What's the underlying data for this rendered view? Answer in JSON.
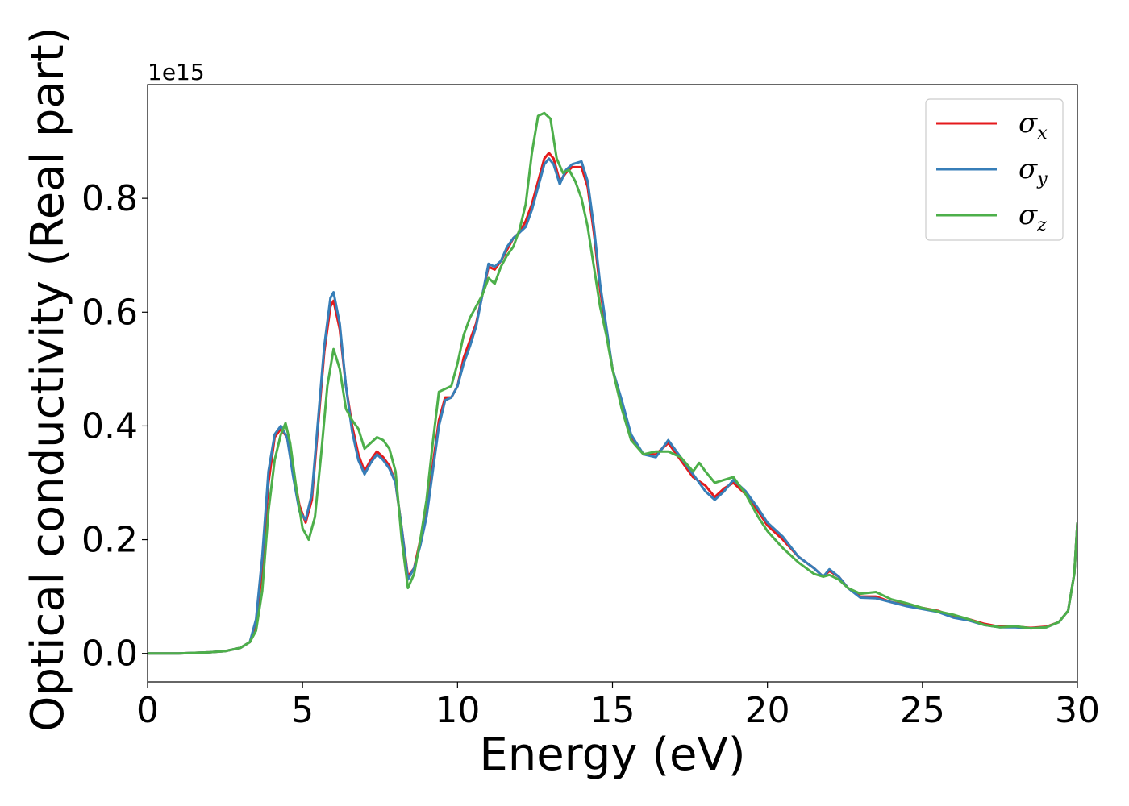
{
  "chart_data": {
    "type": "line",
    "xlabel": "Energy (eV)",
    "ylabel": "Optical conductivity (Real part)",
    "y_offset_label": "1e15",
    "xlim": [
      0,
      30
    ],
    "ylim": [
      -0.05,
      1.0
    ],
    "xticks": [
      0,
      5,
      10,
      15,
      20,
      25,
      30
    ],
    "xtick_labels": [
      "0",
      "5",
      "10",
      "15",
      "20",
      "25",
      "30"
    ],
    "yticks": [
      0.0,
      0.2,
      0.4,
      0.6,
      0.8
    ],
    "ytick_labels": [
      "0.0",
      "0.2",
      "0.4",
      "0.6",
      "0.8"
    ],
    "grid": false,
    "legend_position": "top-right",
    "series": [
      {
        "name": "σx",
        "symbol": "σ",
        "subscript": "x",
        "color": "#e41a1c",
        "points": [
          [
            0,
            0
          ],
          [
            1,
            0
          ],
          [
            2,
            0.002
          ],
          [
            2.5,
            0.004
          ],
          [
            3,
            0.01
          ],
          [
            3.3,
            0.02
          ],
          [
            3.5,
            0.05
          ],
          [
            3.7,
            0.15
          ],
          [
            3.9,
            0.3
          ],
          [
            4.1,
            0.38
          ],
          [
            4.3,
            0.395
          ],
          [
            4.5,
            0.38
          ],
          [
            4.7,
            0.32
          ],
          [
            4.9,
            0.26
          ],
          [
            5.1,
            0.23
          ],
          [
            5.3,
            0.27
          ],
          [
            5.5,
            0.4
          ],
          [
            5.7,
            0.53
          ],
          [
            5.9,
            0.61
          ],
          [
            6.0,
            0.62
          ],
          [
            6.2,
            0.57
          ],
          [
            6.4,
            0.47
          ],
          [
            6.6,
            0.4
          ],
          [
            6.8,
            0.35
          ],
          [
            7.0,
            0.32
          ],
          [
            7.2,
            0.34
          ],
          [
            7.4,
            0.355
          ],
          [
            7.6,
            0.345
          ],
          [
            7.8,
            0.33
          ],
          [
            8.0,
            0.3
          ],
          [
            8.2,
            0.22
          ],
          [
            8.4,
            0.135
          ],
          [
            8.6,
            0.15
          ],
          [
            8.8,
            0.2
          ],
          [
            9.0,
            0.25
          ],
          [
            9.2,
            0.33
          ],
          [
            9.4,
            0.41
          ],
          [
            9.6,
            0.45
          ],
          [
            9.8,
            0.45
          ],
          [
            10.0,
            0.47
          ],
          [
            10.2,
            0.52
          ],
          [
            10.4,
            0.55
          ],
          [
            10.6,
            0.58
          ],
          [
            10.8,
            0.63
          ],
          [
            11.0,
            0.68
          ],
          [
            11.2,
            0.675
          ],
          [
            11.4,
            0.69
          ],
          [
            11.6,
            0.71
          ],
          [
            11.8,
            0.73
          ],
          [
            12.0,
            0.74
          ],
          [
            12.2,
            0.76
          ],
          [
            12.4,
            0.79
          ],
          [
            12.6,
            0.83
          ],
          [
            12.8,
            0.87
          ],
          [
            12.95,
            0.88
          ],
          [
            13.1,
            0.87
          ],
          [
            13.3,
            0.83
          ],
          [
            13.5,
            0.845
          ],
          [
            13.7,
            0.855
          ],
          [
            14.0,
            0.855
          ],
          [
            14.2,
            0.82
          ],
          [
            14.4,
            0.74
          ],
          [
            14.6,
            0.64
          ],
          [
            14.8,
            0.57
          ],
          [
            15.0,
            0.5
          ],
          [
            15.3,
            0.44
          ],
          [
            15.6,
            0.38
          ],
          [
            16.0,
            0.35
          ],
          [
            16.4,
            0.35
          ],
          [
            16.8,
            0.37
          ],
          [
            17.2,
            0.34
          ],
          [
            17.6,
            0.31
          ],
          [
            18.0,
            0.295
          ],
          [
            18.3,
            0.275
          ],
          [
            18.6,
            0.29
          ],
          [
            18.9,
            0.3
          ],
          [
            19.3,
            0.28
          ],
          [
            19.7,
            0.25
          ],
          [
            20.0,
            0.225
          ],
          [
            20.5,
            0.2
          ],
          [
            21.0,
            0.17
          ],
          [
            21.5,
            0.15
          ],
          [
            21.8,
            0.135
          ],
          [
            22.0,
            0.145
          ],
          [
            22.3,
            0.135
          ],
          [
            22.6,
            0.115
          ],
          [
            23.0,
            0.1
          ],
          [
            23.5,
            0.1
          ],
          [
            24.0,
            0.09
          ],
          [
            24.5,
            0.085
          ],
          [
            25.0,
            0.08
          ],
          [
            25.5,
            0.075
          ],
          [
            26.0,
            0.065
          ],
          [
            26.5,
            0.06
          ],
          [
            27.0,
            0.052
          ],
          [
            27.5,
            0.047
          ],
          [
            28.0,
            0.047
          ],
          [
            28.5,
            0.045
          ],
          [
            29.0,
            0.047
          ],
          [
            29.4,
            0.055
          ],
          [
            29.7,
            0.075
          ],
          [
            29.9,
            0.14
          ],
          [
            30.0,
            0.23
          ]
        ]
      },
      {
        "name": "σy",
        "symbol": "σ",
        "subscript": "y",
        "color": "#377eb8",
        "points": [
          [
            0,
            0
          ],
          [
            1,
            0
          ],
          [
            2,
            0.002
          ],
          [
            2.5,
            0.004
          ],
          [
            3,
            0.01
          ],
          [
            3.3,
            0.02
          ],
          [
            3.5,
            0.06
          ],
          [
            3.7,
            0.17
          ],
          [
            3.9,
            0.32
          ],
          [
            4.1,
            0.385
          ],
          [
            4.3,
            0.4
          ],
          [
            4.5,
            0.38
          ],
          [
            4.7,
            0.31
          ],
          [
            4.9,
            0.25
          ],
          [
            5.1,
            0.235
          ],
          [
            5.3,
            0.28
          ],
          [
            5.5,
            0.41
          ],
          [
            5.7,
            0.54
          ],
          [
            5.9,
            0.625
          ],
          [
            6.0,
            0.635
          ],
          [
            6.2,
            0.58
          ],
          [
            6.4,
            0.47
          ],
          [
            6.6,
            0.39
          ],
          [
            6.8,
            0.34
          ],
          [
            7.0,
            0.315
          ],
          [
            7.2,
            0.335
          ],
          [
            7.4,
            0.35
          ],
          [
            7.6,
            0.34
          ],
          [
            7.8,
            0.325
          ],
          [
            8.0,
            0.3
          ],
          [
            8.2,
            0.22
          ],
          [
            8.4,
            0.13
          ],
          [
            8.6,
            0.15
          ],
          [
            8.8,
            0.19
          ],
          [
            9.0,
            0.24
          ],
          [
            9.2,
            0.32
          ],
          [
            9.4,
            0.4
          ],
          [
            9.6,
            0.445
          ],
          [
            9.8,
            0.45
          ],
          [
            10.0,
            0.47
          ],
          [
            10.2,
            0.51
          ],
          [
            10.4,
            0.54
          ],
          [
            10.6,
            0.575
          ],
          [
            10.8,
            0.63
          ],
          [
            11.0,
            0.685
          ],
          [
            11.2,
            0.68
          ],
          [
            11.4,
            0.69
          ],
          [
            11.6,
            0.715
          ],
          [
            11.8,
            0.73
          ],
          [
            12.0,
            0.74
          ],
          [
            12.2,
            0.75
          ],
          [
            12.4,
            0.78
          ],
          [
            12.6,
            0.82
          ],
          [
            12.8,
            0.86
          ],
          [
            12.95,
            0.87
          ],
          [
            13.1,
            0.86
          ],
          [
            13.3,
            0.825
          ],
          [
            13.5,
            0.85
          ],
          [
            13.7,
            0.86
          ],
          [
            14.0,
            0.865
          ],
          [
            14.2,
            0.83
          ],
          [
            14.4,
            0.75
          ],
          [
            14.6,
            0.65
          ],
          [
            14.8,
            0.575
          ],
          [
            15.0,
            0.5
          ],
          [
            15.3,
            0.445
          ],
          [
            15.6,
            0.385
          ],
          [
            16.0,
            0.35
          ],
          [
            16.4,
            0.345
          ],
          [
            16.8,
            0.375
          ],
          [
            17.2,
            0.345
          ],
          [
            17.6,
            0.315
          ],
          [
            18.0,
            0.285
          ],
          [
            18.3,
            0.27
          ],
          [
            18.6,
            0.285
          ],
          [
            18.9,
            0.305
          ],
          [
            19.3,
            0.285
          ],
          [
            19.7,
            0.255
          ],
          [
            20.0,
            0.23
          ],
          [
            20.5,
            0.205
          ],
          [
            21.0,
            0.17
          ],
          [
            21.5,
            0.15
          ],
          [
            21.8,
            0.135
          ],
          [
            22.0,
            0.148
          ],
          [
            22.3,
            0.135
          ],
          [
            22.6,
            0.115
          ],
          [
            23.0,
            0.098
          ],
          [
            23.5,
            0.097
          ],
          [
            24.0,
            0.09
          ],
          [
            24.5,
            0.083
          ],
          [
            25.0,
            0.078
          ],
          [
            25.5,
            0.073
          ],
          [
            26.0,
            0.063
          ],
          [
            26.5,
            0.058
          ],
          [
            27.0,
            0.05
          ],
          [
            27.5,
            0.046
          ],
          [
            28.0,
            0.046
          ],
          [
            28.5,
            0.044
          ],
          [
            29.0,
            0.046
          ],
          [
            29.4,
            0.055
          ],
          [
            29.7,
            0.075
          ],
          [
            29.9,
            0.14
          ],
          [
            30.0,
            0.23
          ]
        ]
      },
      {
        "name": "σz",
        "symbol": "σ",
        "subscript": "z",
        "color": "#4daf4a",
        "points": [
          [
            0,
            0
          ],
          [
            1,
            0
          ],
          [
            2,
            0.002
          ],
          [
            2.5,
            0.004
          ],
          [
            3,
            0.01
          ],
          [
            3.3,
            0.02
          ],
          [
            3.5,
            0.04
          ],
          [
            3.7,
            0.11
          ],
          [
            3.9,
            0.25
          ],
          [
            4.1,
            0.34
          ],
          [
            4.3,
            0.385
          ],
          [
            4.45,
            0.405
          ],
          [
            4.6,
            0.37
          ],
          [
            4.8,
            0.29
          ],
          [
            5.0,
            0.22
          ],
          [
            5.2,
            0.2
          ],
          [
            5.4,
            0.24
          ],
          [
            5.6,
            0.35
          ],
          [
            5.8,
            0.47
          ],
          [
            6.0,
            0.535
          ],
          [
            6.2,
            0.5
          ],
          [
            6.4,
            0.43
          ],
          [
            6.6,
            0.41
          ],
          [
            6.8,
            0.395
          ],
          [
            7.0,
            0.36
          ],
          [
            7.2,
            0.37
          ],
          [
            7.4,
            0.38
          ],
          [
            7.6,
            0.375
          ],
          [
            7.8,
            0.36
          ],
          [
            8.0,
            0.32
          ],
          [
            8.2,
            0.2
          ],
          [
            8.4,
            0.115
          ],
          [
            8.6,
            0.14
          ],
          [
            8.8,
            0.2
          ],
          [
            9.0,
            0.27
          ],
          [
            9.2,
            0.37
          ],
          [
            9.4,
            0.46
          ],
          [
            9.6,
            0.465
          ],
          [
            9.8,
            0.47
          ],
          [
            10.0,
            0.51
          ],
          [
            10.2,
            0.56
          ],
          [
            10.4,
            0.59
          ],
          [
            10.6,
            0.61
          ],
          [
            10.8,
            0.63
          ],
          [
            11.0,
            0.66
          ],
          [
            11.2,
            0.65
          ],
          [
            11.4,
            0.68
          ],
          [
            11.6,
            0.7
          ],
          [
            11.8,
            0.715
          ],
          [
            12.0,
            0.745
          ],
          [
            12.2,
            0.79
          ],
          [
            12.4,
            0.88
          ],
          [
            12.6,
            0.945
          ],
          [
            12.8,
            0.95
          ],
          [
            13.0,
            0.94
          ],
          [
            13.2,
            0.87
          ],
          [
            13.4,
            0.845
          ],
          [
            13.6,
            0.85
          ],
          [
            13.8,
            0.83
          ],
          [
            14.0,
            0.8
          ],
          [
            14.2,
            0.75
          ],
          [
            14.4,
            0.68
          ],
          [
            14.6,
            0.61
          ],
          [
            14.8,
            0.56
          ],
          [
            15.0,
            0.5
          ],
          [
            15.3,
            0.43
          ],
          [
            15.6,
            0.375
          ],
          [
            16.0,
            0.35
          ],
          [
            16.4,
            0.355
          ],
          [
            16.8,
            0.355
          ],
          [
            17.2,
            0.345
          ],
          [
            17.6,
            0.32
          ],
          [
            17.8,
            0.335
          ],
          [
            18.0,
            0.32
          ],
          [
            18.3,
            0.3
          ],
          [
            18.6,
            0.305
          ],
          [
            18.9,
            0.31
          ],
          [
            19.3,
            0.28
          ],
          [
            19.7,
            0.24
          ],
          [
            20.0,
            0.215
          ],
          [
            20.5,
            0.185
          ],
          [
            21.0,
            0.16
          ],
          [
            21.5,
            0.14
          ],
          [
            21.8,
            0.135
          ],
          [
            22.0,
            0.138
          ],
          [
            22.3,
            0.13
          ],
          [
            22.6,
            0.115
          ],
          [
            23.0,
            0.105
          ],
          [
            23.5,
            0.108
          ],
          [
            24.0,
            0.095
          ],
          [
            24.5,
            0.088
          ],
          [
            25.0,
            0.08
          ],
          [
            25.5,
            0.074
          ],
          [
            26.0,
            0.068
          ],
          [
            26.5,
            0.06
          ],
          [
            27.0,
            0.05
          ],
          [
            27.5,
            0.046
          ],
          [
            28.0,
            0.048
          ],
          [
            28.5,
            0.044
          ],
          [
            29.0,
            0.046
          ],
          [
            29.4,
            0.055
          ],
          [
            29.7,
            0.075
          ],
          [
            29.9,
            0.14
          ],
          [
            30.0,
            0.23
          ]
        ]
      }
    ]
  }
}
